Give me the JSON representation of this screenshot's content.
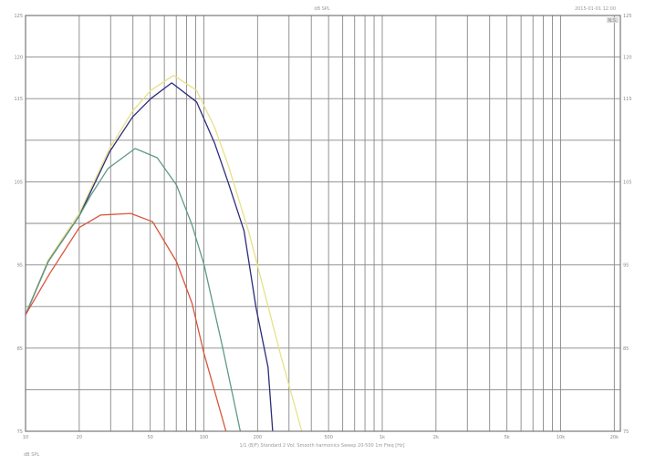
{
  "chart_data": {
    "type": "line",
    "title": "dB SPL",
    "corner_text": "2015-01-01 12:00",
    "badge": "N.S.",
    "caption": "1/1 (B/F)  Standard 2 Vol.  Smooth harmonics  Sweep 20-500  1m Freq [Hz]",
    "footer": "dB SPL",
    "x_scale": "log",
    "xlim": [
      10,
      20000
    ],
    "ylim": [
      75,
      125
    ],
    "grid": true,
    "x_ticks": [
      {
        "v": 10,
        "label": "10"
      },
      {
        "v": 20,
        "label": "20"
      },
      {
        "v": 50,
        "label": "50"
      },
      {
        "v": 100,
        "label": "100"
      },
      {
        "v": 200,
        "label": "200"
      },
      {
        "v": 500,
        "label": "500"
      },
      {
        "v": 1000,
        "label": "1k"
      },
      {
        "v": 2000,
        "label": "2k"
      },
      {
        "v": 5000,
        "label": "5k"
      },
      {
        "v": 10000,
        "label": "10k"
      },
      {
        "v": 20000,
        "label": "20k"
      }
    ],
    "y_ticks": [
      {
        "v": 125,
        "label": "125"
      },
      {
        "v": 120,
        "label": "120"
      },
      {
        "v": 115,
        "label": "115"
      },
      {
        "v": 105,
        "label": "105"
      },
      {
        "v": 95,
        "label": "95"
      },
      {
        "v": 85,
        "label": "85"
      },
      {
        "v": 75,
        "label": "75"
      }
    ],
    "series": [
      {
        "color": "#e8e08a",
        "points": [
          [
            10,
            89
          ],
          [
            13.4,
            95.6
          ],
          [
            20,
            101.2
          ],
          [
            29.6,
            109
          ],
          [
            39.8,
            113.5
          ],
          [
            50.4,
            116
          ],
          [
            67.6,
            117.8
          ],
          [
            91,
            116
          ],
          [
            115,
            111.5
          ],
          [
            137,
            107
          ],
          [
            180,
            98.7
          ],
          [
            270,
            84.1
          ],
          [
            354,
            75
          ]
        ]
      },
      {
        "color": "#2c2c7a",
        "points": [
          [
            10,
            89
          ],
          [
            13.4,
            95.4
          ],
          [
            20,
            100.9
          ],
          [
            29.6,
            108.6
          ],
          [
            39.8,
            112.8
          ],
          [
            50.4,
            115
          ],
          [
            66,
            116.9
          ],
          [
            91,
            114.6
          ],
          [
            115,
            109.6
          ],
          [
            137,
            104.9
          ],
          [
            168,
            99.1
          ],
          [
            196,
            89.9
          ],
          [
            229,
            82.7
          ],
          [
            243,
            75
          ]
        ]
      },
      {
        "color": "#5f9a84",
        "points": [
          [
            10,
            89
          ],
          [
            13.4,
            95.4
          ],
          [
            20,
            100.9
          ],
          [
            23.4,
            103.5
          ],
          [
            29,
            106.6
          ],
          [
            41.2,
            109
          ],
          [
            54.7,
            107.9
          ],
          [
            70.2,
            104.6
          ],
          [
            85.8,
            99.8
          ],
          [
            100,
            95.1
          ],
          [
            127,
            85.2
          ],
          [
            160,
            75
          ]
        ]
      },
      {
        "color": "#d9553a",
        "points": [
          [
            10,
            89
          ],
          [
            13.7,
            94
          ],
          [
            20,
            99.5
          ],
          [
            26.3,
            101
          ],
          [
            38.9,
            101.2
          ],
          [
            51.6,
            100.2
          ],
          [
            70.2,
            95.4
          ],
          [
            85.8,
            90.4
          ],
          [
            100,
            84.4
          ],
          [
            133,
            75
          ]
        ]
      }
    ]
  }
}
